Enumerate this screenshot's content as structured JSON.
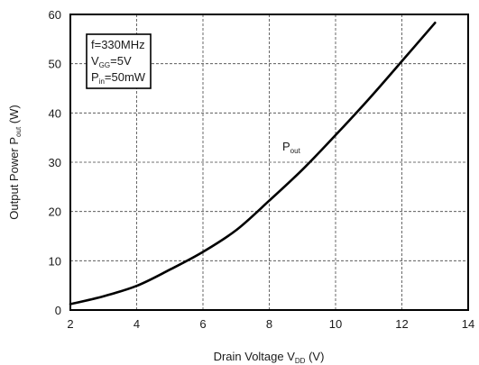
{
  "chart_data": {
    "type": "line",
    "title": "",
    "xlabel": {
      "main": "Drain Voltage  V",
      "sub": "DD",
      "unit": " (V)"
    },
    "ylabel": {
      "main": "Output  Power  P",
      "sub": "out",
      "unit": " (W)"
    },
    "xlim": [
      2,
      14
    ],
    "ylim": [
      0,
      60
    ],
    "xticks": [
      2,
      4,
      6,
      8,
      10,
      12,
      14
    ],
    "yticks": [
      0,
      10,
      20,
      30,
      40,
      50,
      60
    ],
    "grid": true,
    "grid_style": "dashed",
    "line_color": "#000000",
    "series": [
      {
        "name": "Pout",
        "label_main": "P",
        "label_sub": "out",
        "x": [
          2,
          3,
          4,
          5,
          6,
          7,
          8,
          9,
          10,
          11,
          12,
          13
        ],
        "y": [
          1.2,
          2.8,
          4.9,
          8.2,
          11.8,
          16.2,
          22.2,
          28.5,
          35.5,
          42.8,
          50.5,
          58.3
        ]
      }
    ],
    "conditions": [
      {
        "main": "f=330MHz",
        "sub": "",
        "tail": ""
      },
      {
        "main": "V",
        "sub": "GG",
        "tail": "=5V"
      },
      {
        "main": "P",
        "sub": "in",
        "tail": "=50mW"
      }
    ]
  }
}
